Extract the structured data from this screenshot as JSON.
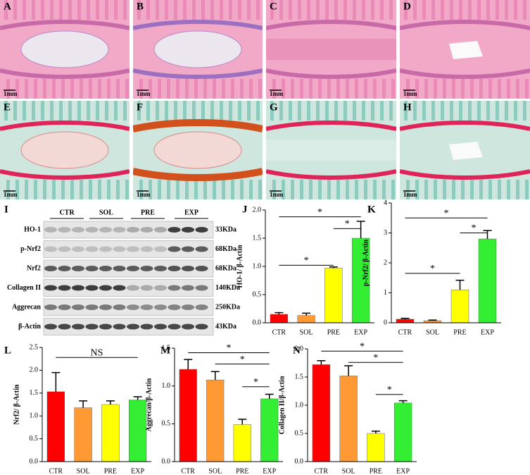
{
  "figure": {
    "images": [
      {
        "label": "A",
        "scale": "1mm"
      },
      {
        "label": "B",
        "scale": "1mm"
      },
      {
        "label": "C",
        "scale": "1mm"
      },
      {
        "label": "D",
        "scale": "1mm"
      },
      {
        "label": "E",
        "scale": "1mm"
      },
      {
        "label": "F",
        "scale": "1mm"
      },
      {
        "label": "G",
        "scale": "1mm"
      },
      {
        "label": "H",
        "scale": "1mm"
      }
    ],
    "blot": {
      "label": "I",
      "groups": [
        "CTR",
        "SOL",
        "PRE",
        "EXP"
      ],
      "rows": [
        {
          "protein": "HO-1",
          "size": "33KDa"
        },
        {
          "protein": "p-Nrf2",
          "size": "68KDa"
        },
        {
          "protein": "Nrf2",
          "size": "68KDa"
        },
        {
          "protein": "Collagen II",
          "size": "140KDa"
        },
        {
          "protein": "Aggrecan",
          "size": "250KDa"
        },
        {
          "protein": "β-Actin",
          "size": "43KDa"
        }
      ]
    }
  },
  "chart_data": [
    {
      "type": "bar",
      "panel_label": "J",
      "ylabel": "HO-1/ β-Actin",
      "categories": [
        "CTR",
        "SOL",
        "PRE",
        "EXP"
      ],
      "values": [
        0.15,
        0.13,
        0.97,
        1.5
      ],
      "errors": [
        0.03,
        0.04,
        0.02,
        0.3
      ],
      "colors": [
        "#ff0000",
        "#ff9933",
        "#ffff00",
        "#33ee33"
      ],
      "ylim": [
        0,
        2
      ],
      "yticks": [
        {
          "value": 0,
          "label": "0.0"
        },
        {
          "value": 0.5,
          "label": "0.5"
        },
        {
          "value": 1,
          "label": "1.0"
        },
        {
          "value": 1.5,
          "label": "1.5"
        },
        {
          "value": 2,
          "label": "2.0"
        }
      ],
      "annotations": [
        {
          "text": "*",
          "from": "CTR",
          "to": "PRE",
          "y": 1.02
        },
        {
          "text": "*",
          "from": "CTR",
          "to": "EXP",
          "y": 1.88
        },
        {
          "text": "*",
          "from": "PRE",
          "to": "EXP",
          "y": 1.67
        }
      ]
    },
    {
      "type": "bar",
      "panel_label": "K",
      "ylabel": "p-Nrf2/ β-Actin",
      "categories": [
        "CTR",
        "SOL",
        "PRE",
        "EXP"
      ],
      "values": [
        0.12,
        0.07,
        1.1,
        2.8
      ],
      "errors": [
        0.03,
        0.02,
        0.32,
        0.28
      ],
      "colors": [
        "#ff0000",
        "#ff9933",
        "#ffff00",
        "#33ee33"
      ],
      "ylim": [
        0,
        4
      ],
      "yticks": [
        0,
        1,
        2,
        3,
        4
      ],
      "annotations": [
        {
          "text": "*",
          "from": "CTR",
          "to": "PRE",
          "y": 1.65
        },
        {
          "text": "*",
          "from": "CTR",
          "to": "EXP",
          "y": 3.5
        },
        {
          "text": "*",
          "from": "PRE",
          "to": "EXP",
          "y": 3.0
        }
      ]
    },
    {
      "type": "bar",
      "panel_label": "L",
      "ylabel": "Nrf2/ β-Actin",
      "categories": [
        "CTR",
        "SOL",
        "PRE",
        "EXP"
      ],
      "values": [
        1.53,
        1.18,
        1.25,
        1.35
      ],
      "errors": [
        0.42,
        0.15,
        0.08,
        0.07
      ],
      "colors": [
        "#ff0000",
        "#ff9933",
        "#ffff00",
        "#33ee33"
      ],
      "ylim": [
        0,
        2.5
      ],
      "yticks": [
        {
          "value": 0,
          "label": "0.0"
        },
        {
          "value": 0.5,
          "label": "0.5"
        },
        {
          "value": 1,
          "label": "1.0"
        },
        {
          "value": 1.5,
          "label": "1.5"
        },
        {
          "value": 2,
          "label": "2.0"
        },
        {
          "value": 2.5,
          "label": "2.5"
        }
      ],
      "annotations": [
        {
          "text": "NS",
          "from": "CTR",
          "to": "EXP",
          "y": 2.28
        }
      ]
    },
    {
      "type": "bar",
      "panel_label": "M",
      "ylabel": "Aggrecan/β-Actin",
      "categories": [
        "CTR",
        "SOL",
        "PRE",
        "EXP"
      ],
      "values": [
        1.22,
        1.08,
        0.49,
        0.83
      ],
      "errors": [
        0.13,
        0.11,
        0.07,
        0.06
      ],
      "colors": [
        "#ff0000",
        "#ff9933",
        "#ffff00",
        "#33ee33"
      ],
      "ylim": [
        0,
        1.5
      ],
      "yticks": [
        {
          "value": 0,
          "label": "0.0"
        },
        {
          "value": 0.5,
          "label": "0.5"
        },
        {
          "value": 1,
          "label": "1.0"
        },
        {
          "value": 1.5,
          "label": "1.5"
        }
      ],
      "annotations": [
        {
          "text": "*",
          "from": "CTR",
          "to": "EXP",
          "y": 1.44
        },
        {
          "text": "*",
          "from": "SOL",
          "to": "EXP",
          "y": 1.29
        },
        {
          "text": "*",
          "from": "PRE",
          "to": "EXP",
          "y": 0.99
        }
      ]
    },
    {
      "type": "bar",
      "panel_label": "N",
      "ylabel": "Collagen II/β-Actin",
      "categories": [
        "CTR",
        "SOL",
        "PRE",
        "EXP"
      ],
      "values": [
        1.72,
        1.52,
        0.5,
        1.04
      ],
      "errors": [
        0.07,
        0.18,
        0.04,
        0.04
      ],
      "colors": [
        "#ff0000",
        "#ff9933",
        "#ffff00",
        "#33ee33"
      ],
      "ylim": [
        0,
        2
      ],
      "yticks": [
        {
          "value": 0,
          "label": "0.0"
        },
        {
          "value": 0.5,
          "label": "0.5"
        },
        {
          "value": 1,
          "label": "1.0"
        },
        {
          "value": 1.5,
          "label": "1.5"
        },
        {
          "value": 2,
          "label": "2.0"
        }
      ],
      "annotations": [
        {
          "text": "*",
          "from": "CTR",
          "to": "EXP",
          "y": 1.96
        },
        {
          "text": "*",
          "from": "SOL",
          "to": "EXP",
          "y": 1.76
        },
        {
          "text": "*",
          "from": "PRE",
          "to": "EXP",
          "y": 1.19
        }
      ]
    }
  ]
}
